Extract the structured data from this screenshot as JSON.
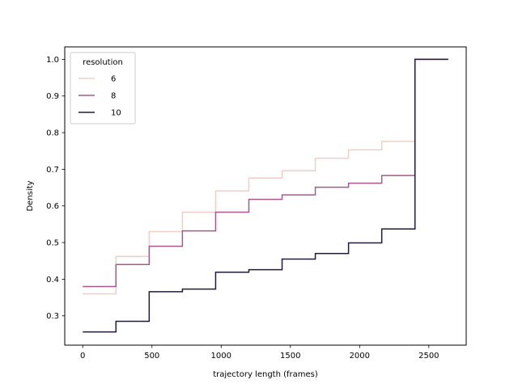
{
  "chart_data": {
    "type": "line",
    "xlabel": "trajectory length (frames)",
    "ylabel": "Density",
    "xlim": [
      -130,
      2770
    ],
    "ylim": [
      0.22,
      1.034
    ],
    "xticks": [
      0,
      500,
      1000,
      1500,
      2000,
      2500
    ],
    "yticks": [
      0.3,
      0.4,
      0.5,
      0.6,
      0.7,
      0.8,
      0.9,
      1.0
    ],
    "grid": false,
    "legend": {
      "title": "resolution",
      "placement": "top-left"
    },
    "x": [
      0,
      240,
      480,
      720,
      960,
      1200,
      1440,
      1680,
      1920,
      2160,
      2400,
      2640
    ],
    "series": [
      {
        "name": "6",
        "color": "#efcfc9",
        "values": [
          0.36,
          0.462,
          0.53,
          0.583,
          0.641,
          0.676,
          0.696,
          0.73,
          0.753,
          0.776,
          1.0,
          1.0
        ]
      },
      {
        "name": "8",
        "color": "#a6598a",
        "values": [
          0.38,
          0.44,
          0.49,
          0.532,
          0.583,
          0.618,
          0.63,
          0.651,
          0.662,
          0.683,
          1.0,
          1.0
        ]
      },
      {
        "name": "10",
        "color": "#231a3b",
        "values": [
          0.256,
          0.285,
          0.366,
          0.373,
          0.419,
          0.426,
          0.455,
          0.47,
          0.499,
          0.537,
          1.0,
          1.0
        ]
      }
    ]
  }
}
